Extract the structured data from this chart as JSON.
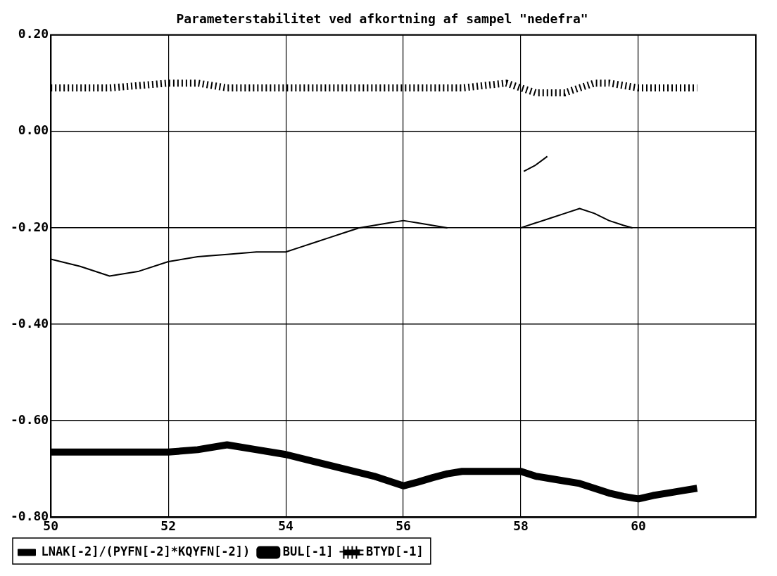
{
  "chart_data": {
    "type": "line",
    "title": "Parameterstabilitet ved afkortning af sampel \"nedefra\"",
    "xlim": [
      50,
      62
    ],
    "xticks": [
      50,
      52,
      54,
      56,
      58,
      60
    ],
    "ylim": [
      -0.8,
      0.2
    ],
    "yticks": [
      {
        "value": 0.2,
        "label": "0.20"
      },
      {
        "value": 0,
        "label": "0.00"
      },
      {
        "value": -0.2,
        "label": "-0.20"
      },
      {
        "value": -0.4,
        "label": "-0.40"
      },
      {
        "value": -0.6,
        "label": "-0.60"
      },
      {
        "value": -0.8,
        "label": "-0.80"
      }
    ],
    "grid": true,
    "legend": "bottom",
    "marker": "none",
    "series": [
      {
        "name": "LNAK[-2]/(PYFN[-2]*KQYFN[-2])",
        "color": "#000000",
        "line_style": "solid",
        "x": [
          50,
          50.5,
          51,
          51.5,
          52,
          52.5,
          53,
          53.5,
          54,
          54.25,
          54.5,
          54.75,
          55,
          55.25,
          55.5,
          55.75,
          56,
          56.25,
          56.5,
          56.75,
          57.5,
          58,
          58.25,
          58.5,
          58.75,
          59,
          59.25,
          59.5,
          59.75,
          59.9
        ],
        "values": [
          -0.265,
          -0.28,
          -0.3,
          -0.29,
          -0.27,
          -0.26,
          -0.255,
          -0.25,
          -0.25,
          -0.24,
          -0.23,
          -0.22,
          -0.21,
          -0.2,
          -0.195,
          -0.19,
          -0.185,
          -0.19,
          -0.195,
          -0.2,
          null,
          -0.2,
          -0.19,
          -0.18,
          -0.17,
          -0.16,
          -0.17,
          -0.185,
          -0.195,
          -0.2
        ]
      },
      {
        "color": "#000000",
        "line_style": "solid",
        "x": [
          58.05,
          58.25,
          58.45
        ],
        "values": [
          -0.083,
          -0.07,
          -0.052
        ]
      },
      {
        "name": "BUL[-1]",
        "color": "#000000",
        "line_style": "solid",
        "x": [
          50,
          50.5,
          51,
          51.5,
          52,
          52.5,
          53,
          53.5,
          54,
          54.5,
          55,
          55.5,
          56,
          56.25,
          56.5,
          56.75,
          57,
          57.5,
          58,
          58.25,
          58.5,
          58.75,
          59,
          59.25,
          59.5,
          59.75,
          60,
          60.25,
          60.5,
          60.75,
          61
        ],
        "values": [
          -0.665,
          -0.665,
          -0.665,
          -0.665,
          -0.665,
          -0.66,
          -0.65,
          -0.66,
          -0.67,
          -0.685,
          -0.7,
          -0.715,
          -0.735,
          -0.727,
          -0.718,
          -0.71,
          -0.705,
          -0.705,
          -0.705,
          -0.715,
          -0.72,
          -0.725,
          -0.73,
          -0.74,
          -0.75,
          -0.757,
          -0.762,
          -0.755,
          -0.75,
          -0.745,
          -0.74
        ]
      },
      {
        "name": "BTYD[-1]",
        "color": "#000000",
        "line_style": "dotted",
        "x": [
          50,
          51,
          52,
          52.5,
          53,
          54,
          55,
          56,
          57,
          57.75,
          58.25,
          58.75,
          59.25,
          59.5,
          60,
          61
        ],
        "values": [
          0.09,
          0.09,
          0.1,
          0.1,
          0.09,
          0.09,
          0.09,
          0.09,
          0.09,
          0.1,
          0.08,
          0.08,
          0.1,
          0.1,
          0.09,
          0.09
        ]
      }
    ]
  }
}
